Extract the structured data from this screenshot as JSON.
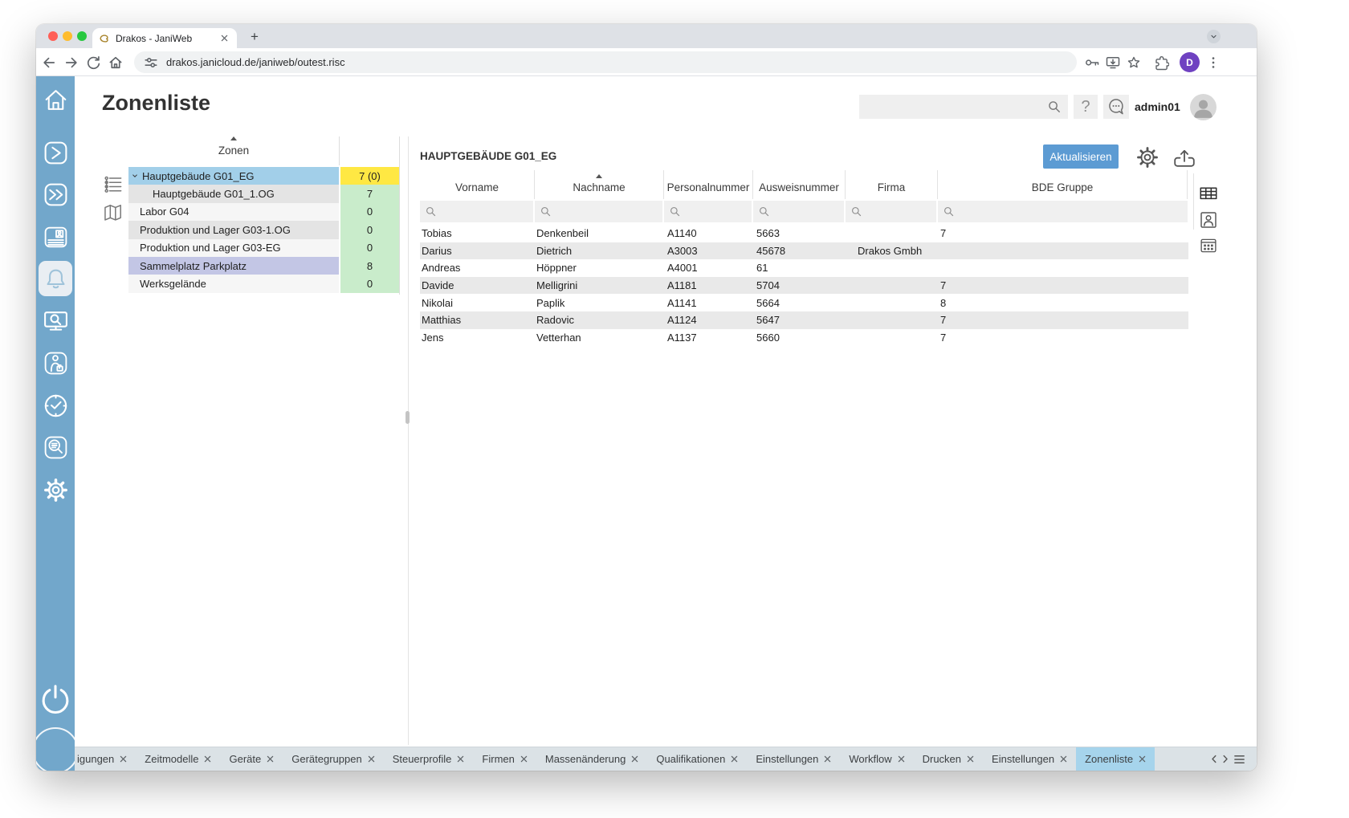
{
  "browser": {
    "tab_title": "Drakos - JaniWeb",
    "url": "drakos.janicloud.de/janiweb/outest.risc",
    "newtab_glyph": "+",
    "profile_initial": "D",
    "toolbar_icons": [
      "back",
      "forward",
      "reload",
      "home"
    ],
    "action_icons": [
      "key",
      "install",
      "bookmark-star",
      "extensions",
      "menu-dots"
    ]
  },
  "app": {
    "page_title": "Zonenliste",
    "username": "admin01",
    "help_glyph": "?",
    "search_value": "",
    "header_icons": [
      "search",
      "help",
      "chat",
      "avatar"
    ]
  },
  "sidebar": {
    "items": [
      {
        "icon": "home"
      },
      {
        "icon": "chevron-right"
      },
      {
        "icon": "double-chevron-right"
      },
      {
        "icon": "id-card"
      },
      {
        "icon": "bell",
        "active": true
      },
      {
        "icon": "monitor-search"
      },
      {
        "icon": "worker"
      },
      {
        "icon": "clock"
      },
      {
        "icon": "log-search"
      },
      {
        "icon": "gear"
      }
    ],
    "bottom_icon": "power"
  },
  "zones": {
    "header": "Zonen",
    "sort": "asc",
    "panel_icons": [
      "tree-view",
      "map-view"
    ],
    "rows": [
      {
        "label": "Hauptgebäude G01_EG",
        "count": "7 (0)",
        "level": 0,
        "expanded": true,
        "row_style": "selected",
        "count_style": "yellow"
      },
      {
        "label": "Hauptgebäude G01_1.OG",
        "count": "7",
        "level": 1,
        "row_style": "alt",
        "count_style": "green"
      },
      {
        "label": "Labor G04",
        "count": "0",
        "level": 0,
        "row_style": "plain",
        "count_style": "green"
      },
      {
        "label": "Produktion und Lager G03-1.OG",
        "count": "0",
        "level": 0,
        "row_style": "alt",
        "count_style": "green"
      },
      {
        "label": "Produktion und Lager G03-EG",
        "count": "0",
        "level": 0,
        "row_style": "plain",
        "count_style": "green"
      },
      {
        "label": "Sammelplatz Parkplatz",
        "count": "8",
        "level": 0,
        "row_style": "assembly",
        "count_style": "green"
      },
      {
        "label": "Werksgelände",
        "count": "0",
        "level": 0,
        "row_style": "plain",
        "count_style": "green"
      }
    ]
  },
  "detail": {
    "title": "HAUPTGEBÄUDE G01_EG",
    "refresh_button": "Aktualisieren",
    "action_icons": [
      "settings-gear",
      "export"
    ],
    "rail_icons": [
      "grid-view",
      "person-card",
      "badge-grid"
    ],
    "table": {
      "columns": [
        {
          "label": "Vorname"
        },
        {
          "label": "Nachname",
          "sorted": "asc"
        },
        {
          "label": "Personalnummer"
        },
        {
          "label": "Ausweisnummer"
        },
        {
          "label": "Firma"
        },
        {
          "label": "BDE Gruppe"
        }
      ],
      "rows": [
        [
          "Tobias",
          "Denkenbeil",
          "A1140",
          "5663",
          "",
          "7"
        ],
        [
          "Darius",
          "Dietrich",
          "A3003",
          "45678",
          "Drakos Gmbh",
          ""
        ],
        [
          "Andreas",
          "Höppner",
          "A4001",
          "61",
          "",
          ""
        ],
        [
          "Davide",
          "Melligrini",
          "A1181",
          "5704",
          "",
          "7"
        ],
        [
          "Nikolai",
          "Paplik",
          "A1141",
          "5664",
          "",
          "8"
        ],
        [
          "Matthias",
          "Radovic",
          "A1124",
          "5647",
          "",
          "7"
        ],
        [
          "Jens",
          "Vetterhan",
          "A1137",
          "5660",
          "",
          "7"
        ]
      ]
    }
  },
  "bottom_tabs": {
    "tabs": [
      {
        "label": "igungen"
      },
      {
        "label": "Zeitmodelle"
      },
      {
        "label": "Geräte"
      },
      {
        "label": "Gerätegruppen"
      },
      {
        "label": "Steuerprofile"
      },
      {
        "label": "Firmen"
      },
      {
        "label": "Massenänderung"
      },
      {
        "label": "Qualifikationen"
      },
      {
        "label": "Einstellungen"
      },
      {
        "label": "Workflow"
      },
      {
        "label": "Drucken"
      },
      {
        "label": "Einstellungen"
      },
      {
        "label": "Zonenliste",
        "active": true
      }
    ]
  },
  "colors": {
    "sidebar": "#72a7cb",
    "accent_button": "#5c9bd3",
    "selected_row": "#a2cfe9",
    "count_selected": "#ffe843",
    "count_normal": "#c9eccb",
    "assembly_row": "#c3c6e5",
    "active_tab": "#a6d4ec"
  }
}
